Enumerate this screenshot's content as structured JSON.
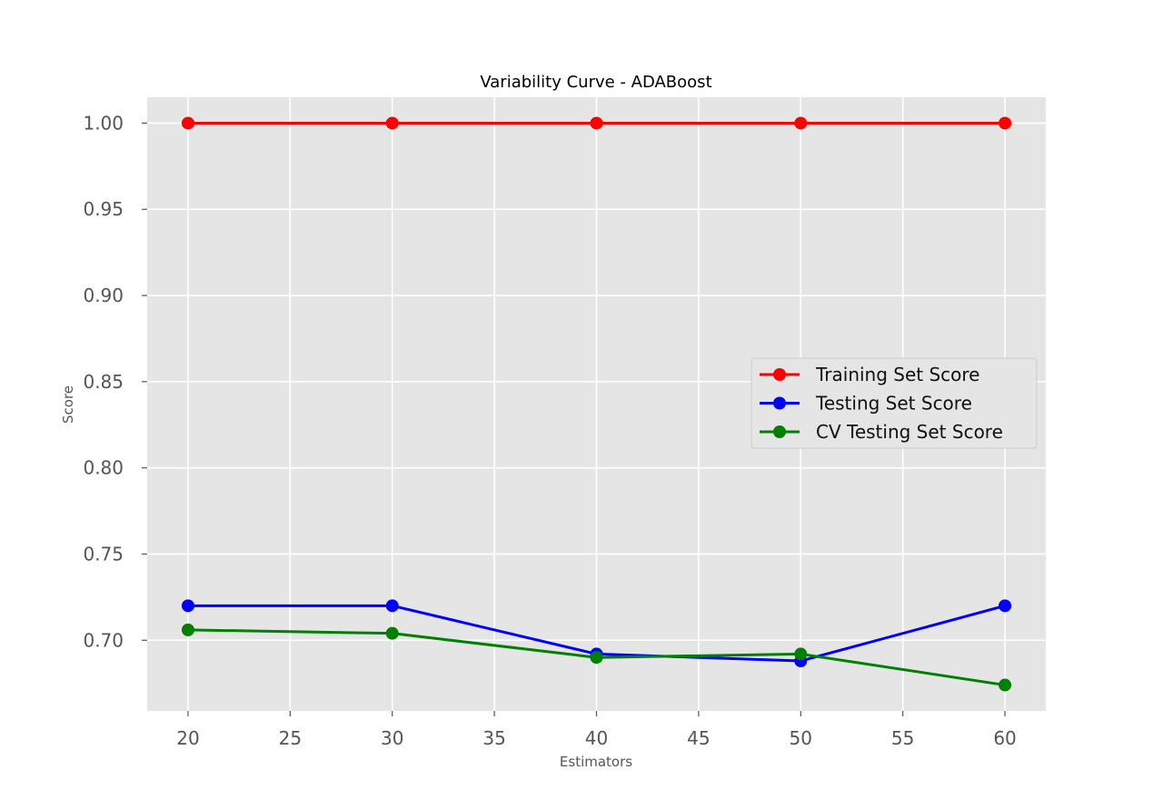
{
  "chart_data": {
    "type": "line",
    "title": "Variability Curve - ADABoost",
    "xlabel": "Estimators",
    "ylabel": "Score",
    "x": [
      20,
      30,
      40,
      50,
      60
    ],
    "xlim": [
      18,
      62
    ],
    "ylim": [
      0.659,
      1.015
    ],
    "xticks": [
      20,
      25,
      30,
      35,
      40,
      45,
      50,
      55,
      60
    ],
    "yticks": [
      0.7,
      0.75,
      0.8,
      0.85,
      0.9,
      0.95,
      1.0
    ],
    "xtick_labels": [
      "20",
      "25",
      "30",
      "35",
      "40",
      "45",
      "50",
      "55",
      "60"
    ],
    "ytick_labels": [
      "0.70",
      "0.75",
      "0.80",
      "0.85",
      "0.90",
      "0.95",
      "1.00"
    ],
    "grid": true,
    "legend_position": "center-right",
    "series": [
      {
        "name": "Training Set Score",
        "color": "#ff0000",
        "values": [
          1.0,
          1.0,
          1.0,
          1.0,
          1.0
        ]
      },
      {
        "name": "Testing Set Score",
        "color": "#0000ff",
        "values": [
          0.72,
          0.72,
          0.692,
          0.688,
          0.72
        ]
      },
      {
        "name": "CV Testing Set Score",
        "color": "#008000",
        "values": [
          0.706,
          0.704,
          0.69,
          0.692,
          0.674
        ]
      }
    ]
  }
}
